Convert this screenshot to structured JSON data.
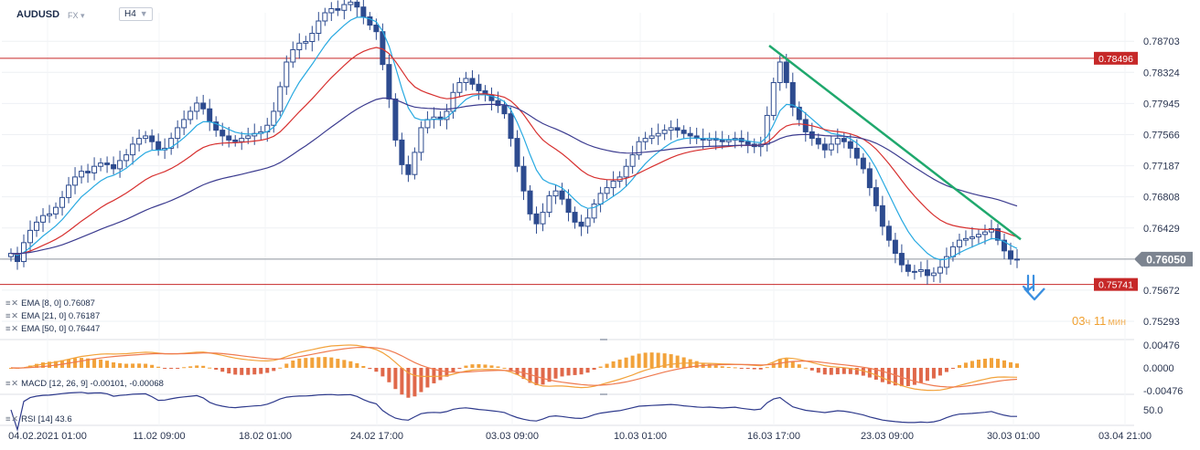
{
  "header": {
    "symbol": "AUDUSD",
    "market": "FX",
    "timeframe": "H4"
  },
  "colors": {
    "ema8": "#27a9e1",
    "ema21": "#d7302f",
    "ema50": "#3b3b8f",
    "level": "#c62828",
    "trendline": "#1fa86d",
    "candle": "#2d4b8f",
    "macd_hist_pos": "#f2a23a",
    "macd_hist_neg": "#e0684a",
    "macd_line": "#f2a23a",
    "signal_line": "#ef7a4f",
    "rsi_line": "#2e3a8c",
    "arrow": "#3a8fe0"
  },
  "indicators": {
    "ema8": "EMA [8, 0] 0.76087",
    "ema21": "EMA [21, 0] 0.76187",
    "ema50": "EMA [50, 0] 0.76447",
    "macd": "MACD [12, 26, 9] -0.00101, -0.00068",
    "rsi": "RSI [14] 43.6"
  },
  "timer": {
    "hours": "03",
    "h_unit": "ч",
    "minutes": "11",
    "m_unit": "мин"
  },
  "chart_data": {
    "type": "candlestick",
    "price_axis": {
      "ylim": [
        0.7507,
        0.7905
      ],
      "ticks": [
        "0.78703",
        "0.78324",
        "0.77945",
        "0.77566",
        "0.77187",
        "0.76808",
        "0.76429",
        "0.76050",
        "0.75672",
        "0.75293"
      ]
    },
    "x_ticks": [
      "04.02.2021 01:00",
      "11.02 09:00",
      "18.02 01:00",
      "24.02 17:00",
      "03.03 09:00",
      "10.03 01:00",
      "16.03 17:00",
      "23.03 09:00",
      "30.03 01:00",
      "03.04 21:00"
    ],
    "levels": [
      {
        "label": "0.78496",
        "value": 0.78496
      },
      {
        "label": "0.75741",
        "value": 0.75741
      }
    ],
    "current_price": {
      "label": "0.76050",
      "value": 0.7605
    },
    "trendline": {
      "from": [
        "16.03 17:00",
        0.7865
      ],
      "to": [
        "30.03 01:00",
        0.7629
      ]
    },
    "closes": [
      0.7612,
      0.7602,
      0.7625,
      0.764,
      0.765,
      0.7658,
      0.766,
      0.7668,
      0.768,
      0.7695,
      0.7705,
      0.7712,
      0.771,
      0.7718,
      0.7722,
      0.772,
      0.7715,
      0.7725,
      0.7732,
      0.7745,
      0.7752,
      0.7755,
      0.7748,
      0.7738,
      0.774,
      0.7752,
      0.7765,
      0.7775,
      0.7785,
      0.7795,
      0.7788,
      0.7772,
      0.7762,
      0.7755,
      0.775,
      0.7748,
      0.7752,
      0.7755,
      0.7758,
      0.776,
      0.7768,
      0.7785,
      0.7815,
      0.7845,
      0.786,
      0.7868,
      0.787,
      0.788,
      0.7895,
      0.7905,
      0.791,
      0.7908,
      0.7915,
      0.7918,
      0.7912,
      0.79,
      0.789,
      0.7882,
      0.7842,
      0.78,
      0.775,
      0.772,
      0.7708,
      0.7735,
      0.7765,
      0.7775,
      0.7778,
      0.7775,
      0.7785,
      0.7808,
      0.782,
      0.7825,
      0.7818,
      0.781,
      0.7805,
      0.7798,
      0.7792,
      0.7782,
      0.7752,
      0.7718,
      0.7688,
      0.766,
      0.7648,
      0.7662,
      0.7682,
      0.7688,
      0.7678,
      0.7662,
      0.765,
      0.7645,
      0.7655,
      0.7672,
      0.7685,
      0.7692,
      0.77,
      0.7705,
      0.7718,
      0.7732,
      0.7748,
      0.7752,
      0.7755,
      0.7758,
      0.7762,
      0.7765,
      0.7762,
      0.7758,
      0.7755,
      0.7752,
      0.775,
      0.7752,
      0.775,
      0.7748,
      0.775,
      0.7752,
      0.7748,
      0.7745,
      0.7742,
      0.7745,
      0.778,
      0.782,
      0.7845,
      0.782,
      0.779,
      0.7775,
      0.776,
      0.7752,
      0.7745,
      0.7738,
      0.7745,
      0.7752,
      0.7748,
      0.774,
      0.7728,
      0.7715,
      0.7692,
      0.767,
      0.7645,
      0.7628,
      0.7612,
      0.7598,
      0.759,
      0.759,
      0.7592,
      0.7585,
      0.7588,
      0.7595,
      0.7608,
      0.762,
      0.7628,
      0.763,
      0.7632,
      0.7635,
      0.7638,
      0.7642,
      0.7628,
      0.7615,
      0.7605,
      0.7605
    ],
    "macd": {
      "range": [
        -0.00476,
        0.00476
      ],
      "ticks": [
        "0.00476",
        "0.0000",
        "-0.00476"
      ]
    },
    "rsi": {
      "ticks": [
        "50.0"
      ]
    }
  }
}
